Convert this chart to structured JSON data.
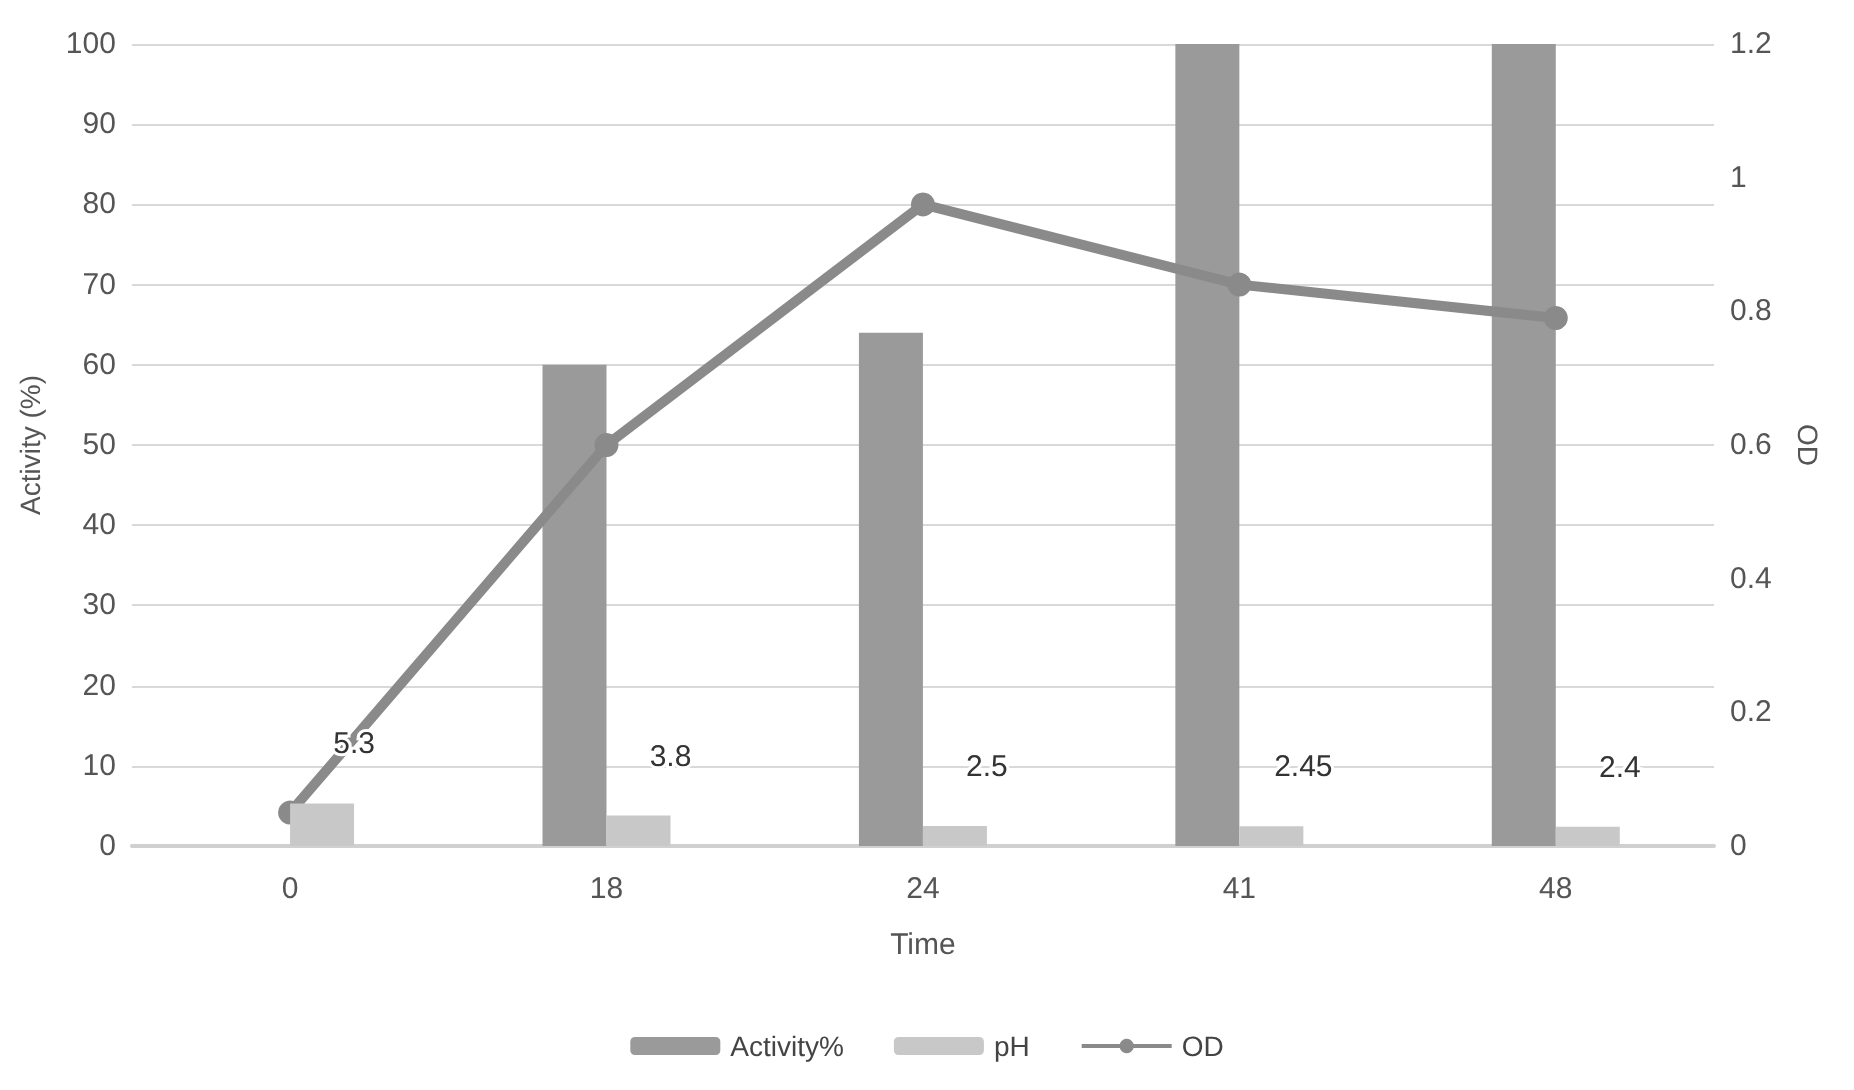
{
  "chart_data": {
    "type": "bar",
    "xlabel": "Time",
    "ylabel": "Activity (%)",
    "y2label": "OD",
    "categories": [
      "0",
      "18",
      "24",
      "41",
      "48"
    ],
    "series": [
      {
        "name": "Activity%",
        "color": "#9a9a9a",
        "values": [
          0,
          60,
          64,
          100,
          100
        ]
      },
      {
        "name": "pH",
        "color": "#c8c8c8",
        "values": [
          5.3,
          3.8,
          2.5,
          2.45,
          2.4
        ],
        "value_labels": [
          "5.3",
          "3.8",
          "2.5",
          "2.45",
          "2.4"
        ]
      },
      {
        "name": "OD",
        "type": "line",
        "axis": "y2",
        "color": "#8a8a8a",
        "values": [
          0.05,
          0.6,
          0.96,
          0.84,
          0.79
        ]
      }
    ],
    "ylim": [
      0,
      100
    ],
    "yticks": [
      0,
      10,
      20,
      30,
      40,
      50,
      60,
      70,
      80,
      90,
      100
    ],
    "y2lim": [
      0,
      1.2
    ],
    "y2ticks": [
      0,
      0.2,
      0.4,
      0.6,
      0.8,
      1,
      1.2
    ],
    "grid": "y",
    "legend": "bottom",
    "marker": "circle"
  }
}
